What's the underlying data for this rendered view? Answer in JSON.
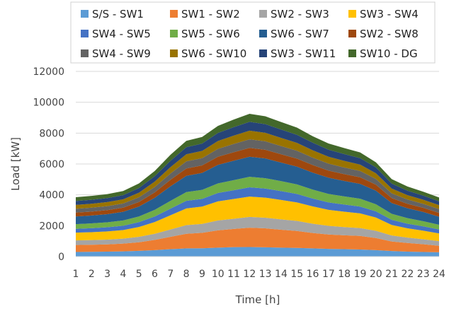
{
  "chart_data": {
    "type": "area",
    "stacked": true,
    "xlabel": "Time [h]",
    "ylabel": "Load [kW]",
    "ylim": [
      0,
      12000
    ],
    "y_ticks": [
      0,
      2000,
      4000,
      6000,
      8000,
      10000,
      12000
    ],
    "categories": [
      "1",
      "2",
      "3",
      "4",
      "5",
      "6",
      "7",
      "8",
      "9",
      "10",
      "11",
      "12",
      "13",
      "14",
      "15",
      "16",
      "17",
      "18",
      "19",
      "20",
      "21",
      "22",
      "23",
      "24"
    ],
    "grid": "y",
    "legend_position": "top",
    "series": [
      {
        "name": "S/S - SW1",
        "color": "#5B9BD5",
        "values": [
          300,
          310,
          320,
          340,
          370,
          420,
          480,
          530,
          540,
          580,
          610,
          620,
          600,
          580,
          560,
          530,
          500,
          480,
          460,
          420,
          360,
          320,
          300,
          280
        ]
      },
      {
        "name": "SW1 - SW2",
        "color": "#ED7D31",
        "values": [
          450,
          460,
          470,
          500,
          560,
          660,
          800,
          950,
          1000,
          1120,
          1180,
          1250,
          1230,
          1160,
          1100,
          1000,
          930,
          900,
          880,
          780,
          620,
          560,
          500,
          420
        ]
      },
      {
        "name": "SW2 - SW3",
        "color": "#A5A5A5",
        "values": [
          300,
          300,
          310,
          320,
          350,
          400,
          480,
          560,
          580,
          640,
          660,
          700,
          690,
          670,
          650,
          600,
          560,
          530,
          510,
          470,
          390,
          350,
          320,
          300
        ]
      },
      {
        "name": "SW3 - SW4",
        "color": "#FFC000",
        "values": [
          500,
          510,
          530,
          560,
          640,
          760,
          920,
          1080,
          1120,
          1240,
          1280,
          1320,
          1300,
          1260,
          1200,
          1120,
          1040,
          1000,
          950,
          860,
          680,
          600,
          560,
          500
        ]
      },
      {
        "name": "SW4 - SW5",
        "color": "#4472C4",
        "values": [
          250,
          260,
          270,
          280,
          310,
          360,
          430,
          490,
          500,
          540,
          570,
          600,
          590,
          570,
          550,
          510,
          480,
          460,
          440,
          400,
          330,
          300,
          280,
          260
        ]
      },
      {
        "name": "SW5 - SW6",
        "color": "#70AD47",
        "values": [
          300,
          310,
          320,
          340,
          370,
          430,
          500,
          570,
          580,
          620,
          650,
          680,
          670,
          650,
          620,
          580,
          550,
          530,
          510,
          460,
          390,
          360,
          330,
          300
        ]
      },
      {
        "name": "SW6 - SW7",
        "color": "#255E91",
        "values": [
          500,
          510,
          530,
          560,
          640,
          780,
          950,
          1050,
          1100,
          1200,
          1260,
          1300,
          1280,
          1200,
          1150,
          1100,
          1050,
          1000,
          960,
          880,
          700,
          640,
          600,
          520
        ]
      },
      {
        "name": "SW2 - SW8",
        "color": "#9E480E",
        "values": [
          250,
          255,
          260,
          270,
          300,
          350,
          420,
          480,
          490,
          530,
          550,
          570,
          560,
          540,
          520,
          490,
          460,
          440,
          430,
          390,
          320,
          290,
          270,
          250
        ]
      },
      {
        "name": "SW4 - SW9",
        "color": "#636363",
        "values": [
          250,
          255,
          260,
          270,
          300,
          350,
          410,
          460,
          470,
          510,
          540,
          560,
          550,
          530,
          510,
          480,
          450,
          430,
          410,
          370,
          310,
          280,
          260,
          250
        ]
      },
      {
        "name": "SW6 - SW10",
        "color": "#997300",
        "values": [
          250,
          255,
          260,
          270,
          300,
          350,
          410,
          460,
          470,
          510,
          540,
          560,
          550,
          530,
          510,
          480,
          450,
          430,
          410,
          370,
          310,
          280,
          260,
          250
        ]
      },
      {
        "name": "SW3 - SW11",
        "color": "#264478",
        "values": [
          250,
          255,
          260,
          270,
          300,
          350,
          410,
          460,
          470,
          520,
          550,
          570,
          560,
          540,
          520,
          490,
          460,
          440,
          420,
          380,
          320,
          290,
          270,
          250
        ]
      },
      {
        "name": "SW10 - DG",
        "color": "#43682B",
        "values": [
          250,
          255,
          260,
          270,
          300,
          340,
          390,
          410,
          430,
          460,
          490,
          520,
          510,
          490,
          470,
          420,
          400,
          390,
          370,
          330,
          290,
          270,
          250,
          250
        ]
      }
    ]
  }
}
